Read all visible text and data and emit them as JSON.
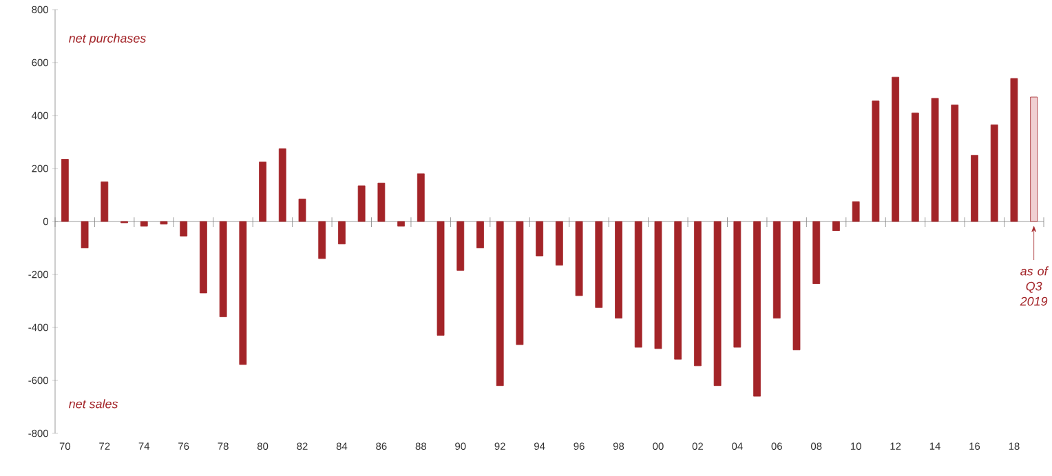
{
  "chart_data": {
    "type": "bar",
    "categories": [
      "70",
      null,
      "72",
      null,
      "74",
      null,
      "76",
      null,
      "78",
      null,
      "80",
      null,
      "82",
      null,
      "84",
      null,
      "86",
      null,
      "88",
      null,
      "90",
      null,
      "92",
      null,
      "94",
      null,
      "96",
      null,
      "98",
      null,
      "00",
      null,
      "02",
      null,
      "04",
      null,
      "06",
      null,
      "08",
      null,
      "10",
      null,
      "12",
      null,
      "14",
      null,
      "16",
      null,
      "18",
      null
    ],
    "values": [
      235,
      -100,
      150,
      -5,
      -18,
      -10,
      -55,
      -270,
      -360,
      -540,
      225,
      275,
      85,
      -140,
      -85,
      135,
      145,
      -18,
      180,
      -430,
      -185,
      -100,
      -620,
      -465,
      -130,
      -165,
      -280,
      -325,
      -365,
      -475,
      -480,
      -520,
      -545,
      -620,
      -475,
      -660,
      -365,
      -485,
      -235,
      -35,
      75,
      455,
      545,
      410,
      465,
      440,
      250,
      365,
      540,
      470
    ],
    "color": "#a32428",
    "colors": [
      "#a32428",
      "#a32428",
      "#a32428",
      "#a32428",
      "#a32428",
      "#a32428",
      "#a32428",
      "#a32428",
      "#a32428",
      "#a32428",
      "#a32428",
      "#a32428",
      "#a32428",
      "#a32428",
      "#a32428",
      "#a32428",
      "#a32428",
      "#a32428",
      "#a32428",
      "#a32428",
      "#a32428",
      "#a32428",
      "#a32428",
      "#a32428",
      "#a32428",
      "#a32428",
      "#a32428",
      "#a32428",
      "#a32428",
      "#a32428",
      "#a32428",
      "#a32428",
      "#a32428",
      "#a32428",
      "#a32428",
      "#a32428",
      "#a32428",
      "#a32428",
      "#a32428",
      "#a32428",
      "#a32428",
      "#a32428",
      "#a32428",
      "#a32428",
      "#a32428",
      "#a32428",
      "#a32428",
      "#a32428",
      "#a32428",
      "#f0d0d2"
    ],
    "ylim": [
      -800,
      800
    ],
    "yticks": [
      -800,
      -600,
      -400,
      -200,
      0,
      200,
      400,
      600,
      800
    ],
    "annotations": [
      "net purchases",
      "net sales",
      {
        "text": "as of Q3 2019",
        "y": 0
      }
    ]
  }
}
